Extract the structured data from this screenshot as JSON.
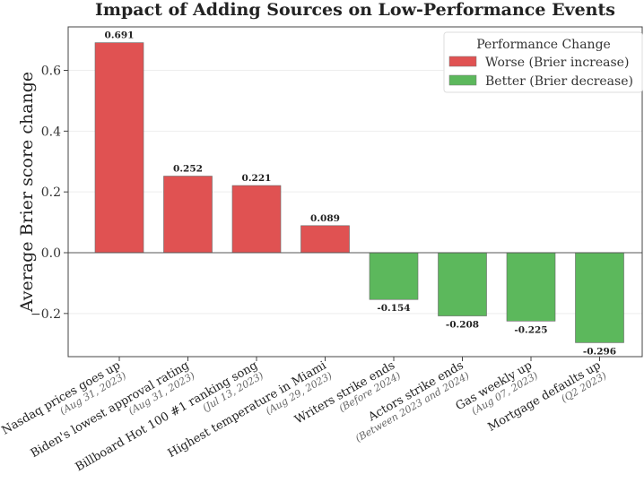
{
  "chart_data": {
    "type": "bar",
    "title": "Impact of Adding Sources on Low-Performance Events",
    "xlabel": "",
    "ylabel": "Average Brier score change",
    "ylim": [
      -0.342,
      0.743
    ],
    "yticks": [
      -0.2,
      0.0,
      0.2,
      0.4,
      0.6
    ],
    "ytick_labels": [
      "−0.2",
      "0.0",
      "0.2",
      "0.4",
      "0.6"
    ],
    "grid": true,
    "categories": [
      {
        "name": "Nasdaq prices goes up",
        "date": "(Aug 31, 2023)"
      },
      {
        "name": "Biden's lowest approval rating",
        "date": "(Aug 31, 2023)"
      },
      {
        "name": "Billboard Hot 100 #1 ranking song",
        "date": "(Jul 13, 2023)"
      },
      {
        "name": "Highest temperature in Miami",
        "date": "(Aug 29, 2023)"
      },
      {
        "name": "Writers strike ends",
        "date": "(Before 2024)"
      },
      {
        "name": "Actors strike ends",
        "date": "(Between 2023 and 2024)"
      },
      {
        "name": "Gas weekly up",
        "date": "(Aug 07, 2023)"
      },
      {
        "name": "Mortgage defaults up",
        "date": "(Q2 2023)"
      }
    ],
    "values": [
      0.691,
      0.252,
      0.221,
      0.089,
      -0.154,
      -0.208,
      -0.225,
      -0.296
    ],
    "data_labels": [
      "0.691",
      "0.252",
      "0.221",
      "0.089",
      "-0.154",
      "-0.208",
      "-0.225",
      "-0.296"
    ],
    "legend": {
      "title": "Performance Change",
      "placement": "top-right",
      "entries": [
        {
          "label": "Worse (Brier increase)",
          "color": "#e05252"
        },
        {
          "label": "Better (Brier decrease)",
          "color": "#5cb85c"
        }
      ]
    },
    "colors": {
      "positive": "#e05252",
      "negative": "#5cb85c"
    }
  }
}
